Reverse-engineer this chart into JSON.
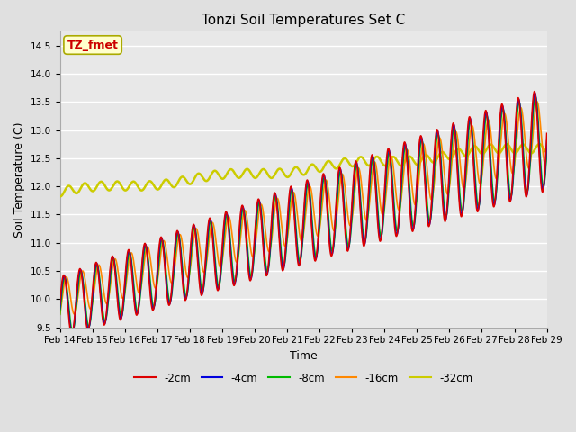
{
  "title": "Tonzi Soil Temperatures Set C",
  "xlabel": "Time",
  "ylabel": "Soil Temperature (C)",
  "ylim": [
    9.5,
    14.75
  ],
  "bg_color": "#e8e8e8",
  "plot_bg": "#e8e8e8",
  "annotation_text": "TZ_fmet",
  "annotation_color": "#cc0000",
  "annotation_bg": "#ffffcc",
  "series": [
    {
      "label": "-2cm",
      "color": "#dd0000",
      "lw": 1.2
    },
    {
      "label": "-4cm",
      "color": "#0000dd",
      "lw": 1.2
    },
    {
      "label": "-8cm",
      "color": "#00bb00",
      "lw": 1.2
    },
    {
      "label": "-16cm",
      "color": "#ff8800",
      "lw": 1.2
    },
    {
      "label": "-32cm",
      "color": "#cccc00",
      "lw": 1.8
    }
  ],
  "xtick_labels": [
    "Feb 14",
    "Feb 15",
    "Feb 16",
    "Feb 17",
    "Feb 18",
    "Feb 19",
    "Feb 20",
    "Feb 21",
    "Feb 22",
    "Feb 23",
    "Feb 24",
    "Feb 25",
    "Feb 26",
    "Feb 27",
    "Feb 28",
    "Feb 29"
  ],
  "title_fontsize": 11,
  "label_fontsize": 9,
  "tick_fontsize": 7.5
}
